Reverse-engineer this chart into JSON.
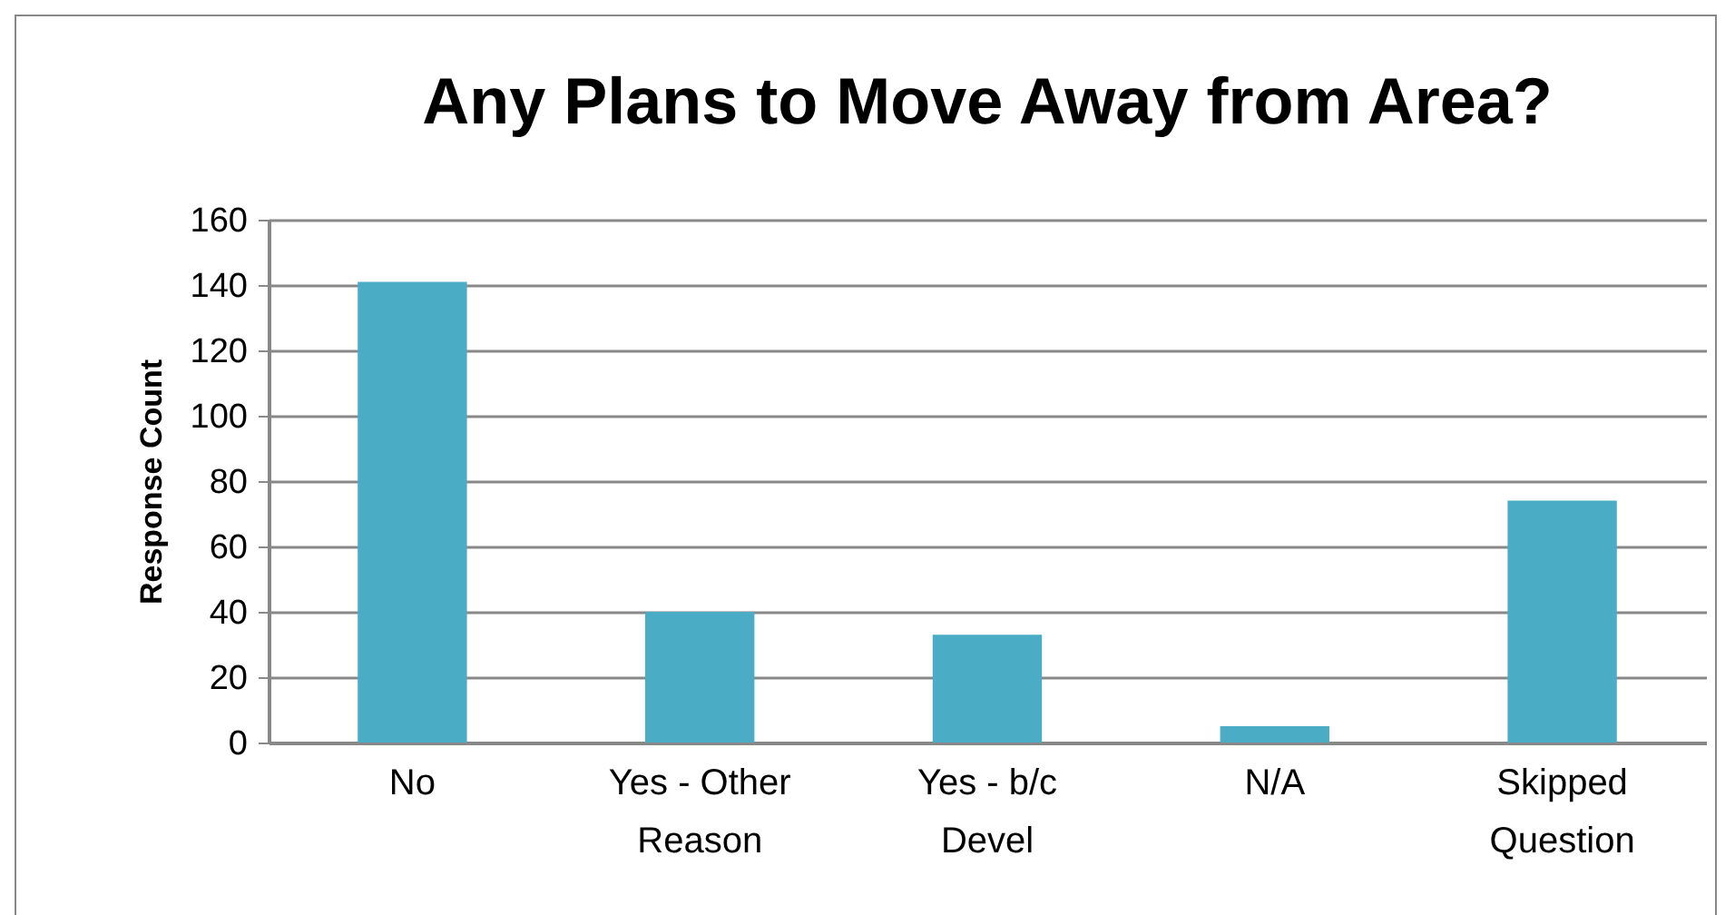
{
  "chart_data": {
    "type": "bar",
    "title": "Any Plans to Move Away from Area?",
    "ylabel": "Response Count",
    "categories": [
      "No",
      "Yes - Other Reason",
      "Yes - b/c Devel",
      "N/A",
      "Skipped Question"
    ],
    "values": [
      141,
      40,
      33,
      5,
      74
    ],
    "color": "#4bacc6",
    "ylim": [
      0,
      160
    ],
    "yticks": [
      0,
      20,
      40,
      60,
      80,
      100,
      120,
      140,
      160
    ],
    "grid": "y"
  }
}
